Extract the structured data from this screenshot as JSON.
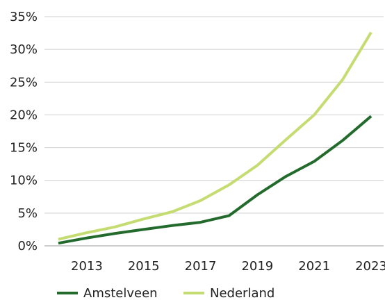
{
  "chart_data": {
    "type": "line",
    "title": "",
    "xlabel": "",
    "ylabel": "",
    "x": [
      2012,
      2013,
      2014,
      2015,
      2016,
      2017,
      2018,
      2019,
      2020,
      2021,
      2022,
      2023
    ],
    "x_ticks": [
      2013,
      2015,
      2017,
      2019,
      2021,
      2023
    ],
    "x_tick_labels": [
      "2013",
      "2015",
      "2017",
      "2019",
      "2021",
      "2023"
    ],
    "xlim": [
      2012,
      2023
    ],
    "ylim": [
      0,
      35
    ],
    "y_ticks": [
      0,
      5,
      10,
      15,
      20,
      25,
      30,
      35
    ],
    "y_tick_labels": [
      "0%",
      "5%",
      "10%",
      "15%",
      "20%",
      "25%",
      "30%",
      "35%"
    ],
    "grid": "horizontal",
    "legend": "bottom",
    "series": [
      {
        "name": "Amstelveen",
        "color": "#236b2d",
        "values": [
          0.4,
          1.2,
          1.9,
          2.5,
          3.1,
          3.6,
          4.6,
          7.8,
          10.6,
          12.9,
          16.1,
          19.8
        ]
      },
      {
        "name": "Nederland",
        "color": "#c5dc72",
        "values": [
          1.0,
          2.0,
          2.9,
          4.1,
          5.2,
          6.9,
          9.3,
          12.3,
          16.2,
          20.0,
          25.4,
          32.6
        ]
      }
    ]
  }
}
